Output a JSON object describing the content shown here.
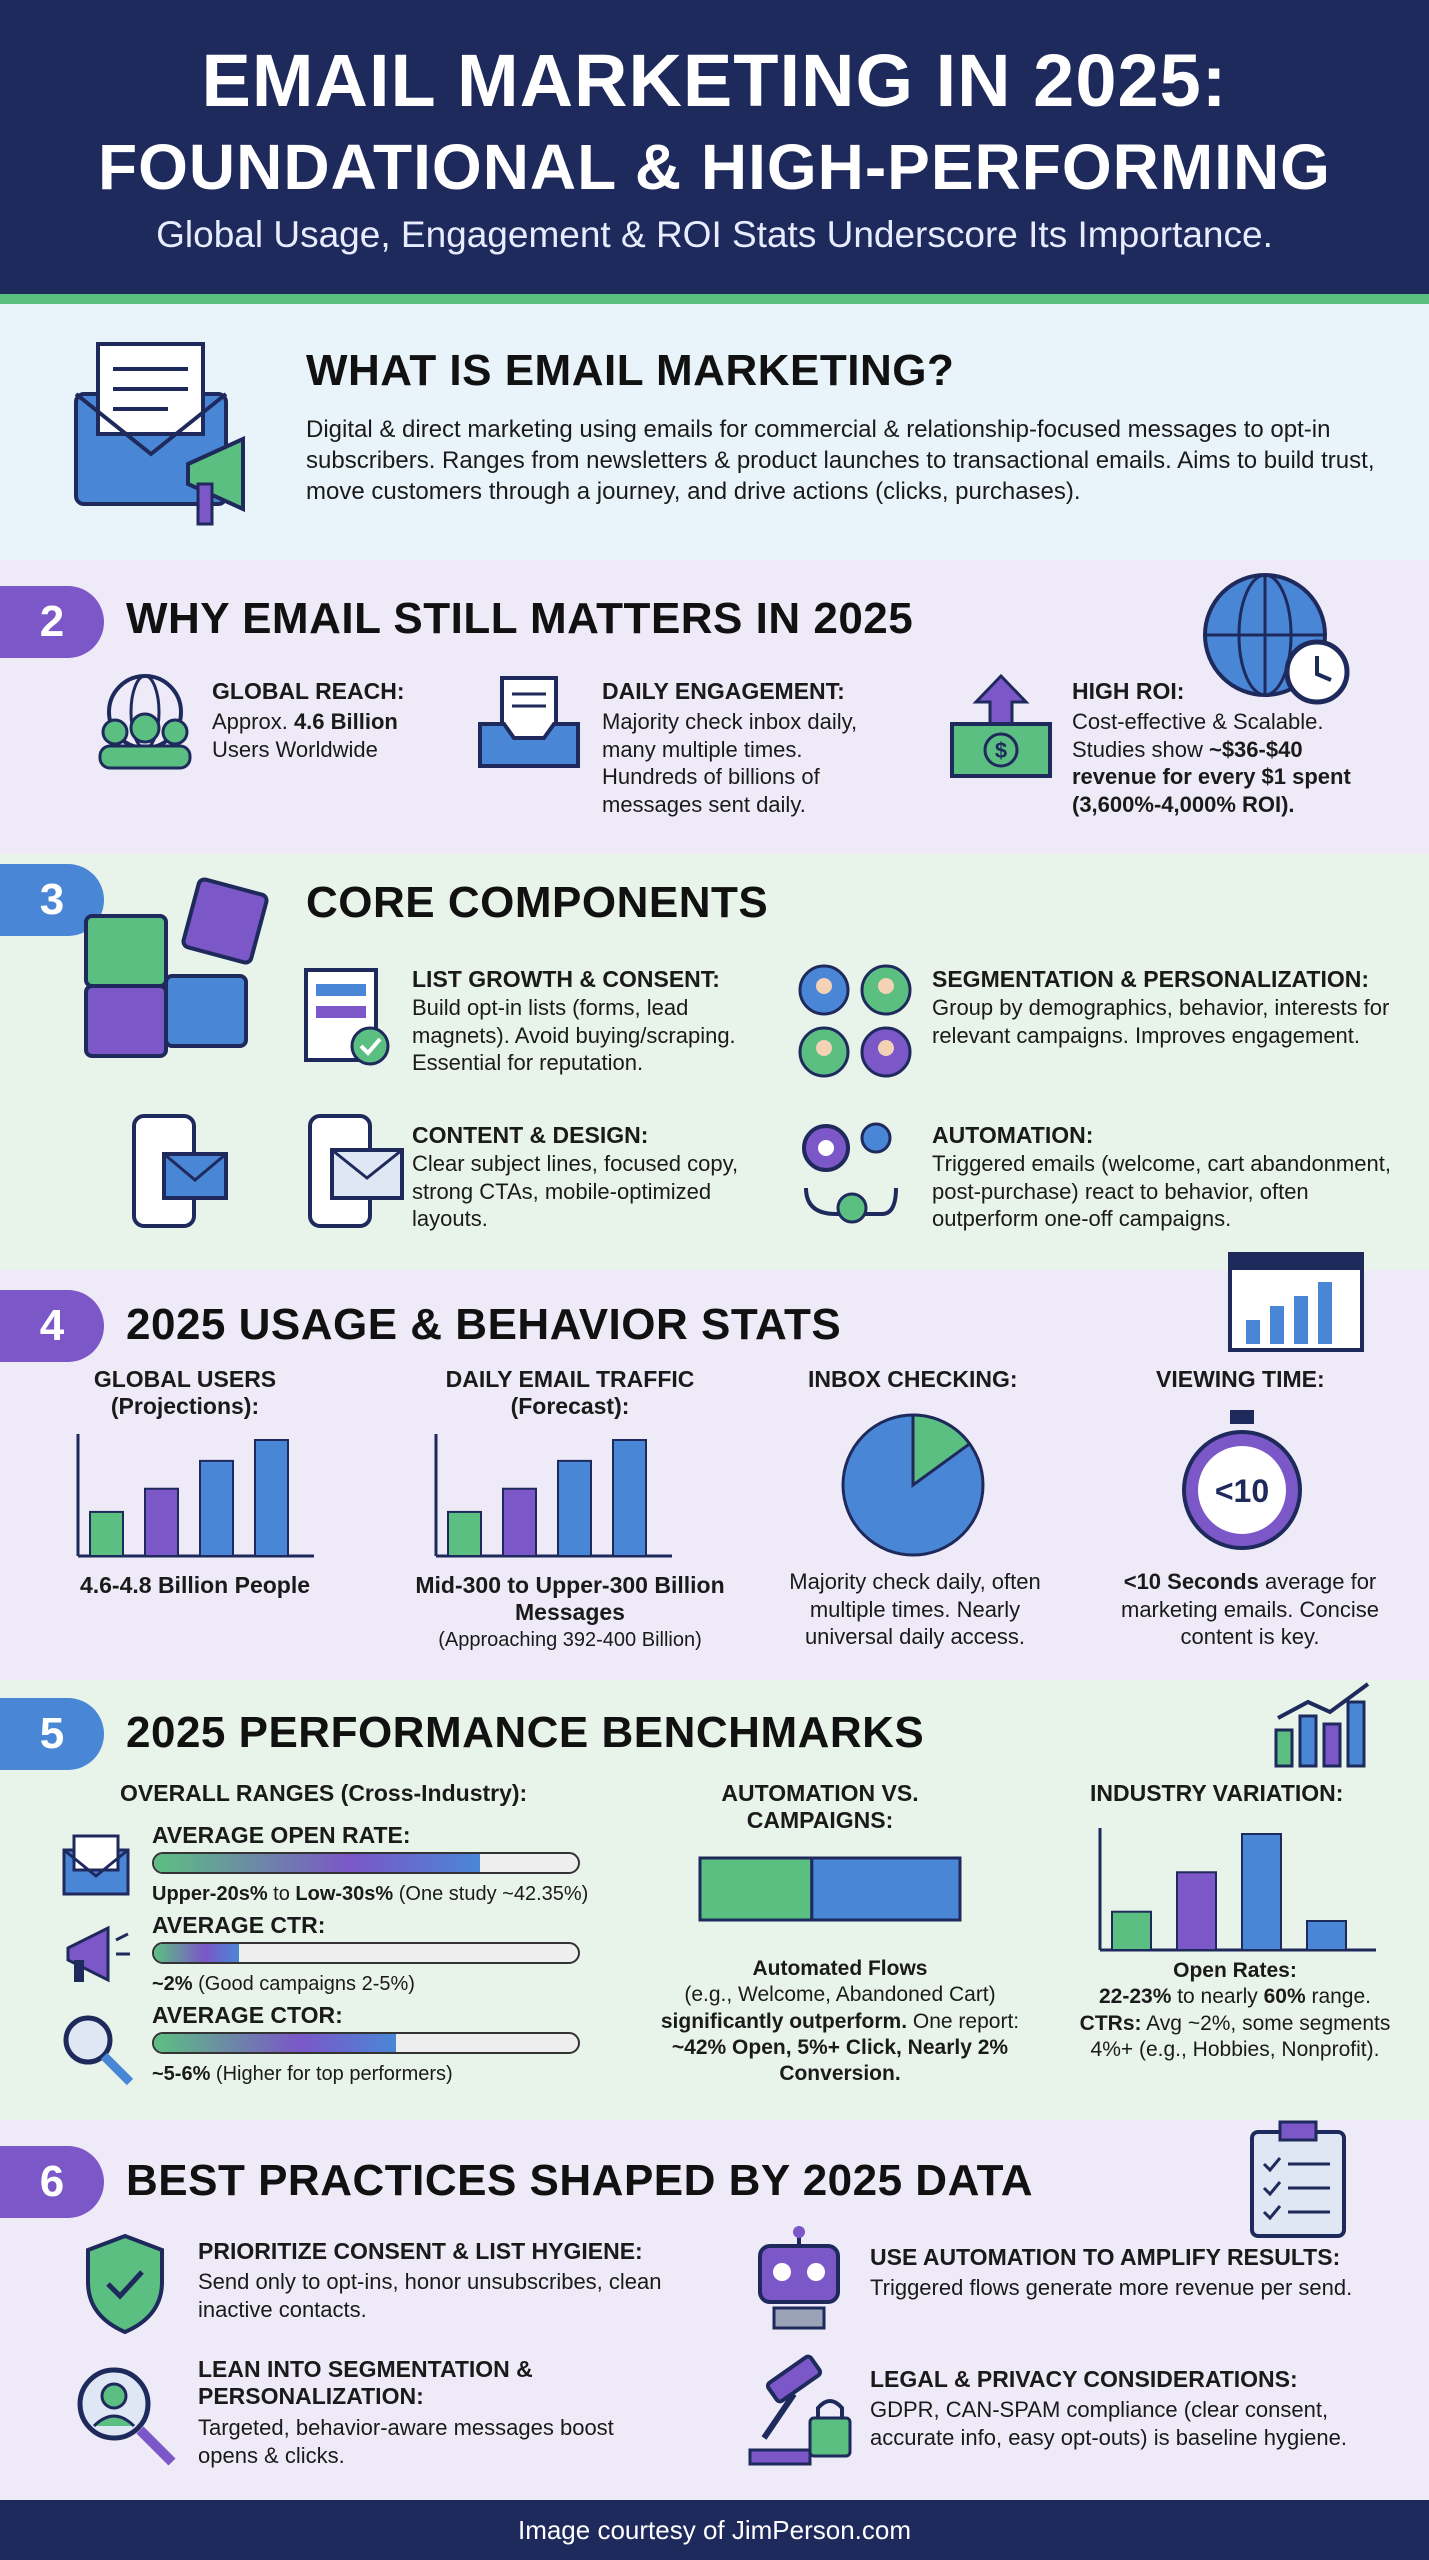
{
  "header": {
    "title_line1": "EMAIL MARKETING IN 2025:",
    "title_line2": "FOUNDATIONAL & HIGH-PERFORMING",
    "subtitle": "Global Usage, Engagement & ROI Stats Underscore Its Importance."
  },
  "colors": {
    "navy": "#1f2a5c",
    "green": "#5cbf82",
    "purple": "#7b57c7",
    "blue": "#4a86d6"
  },
  "s1": {
    "title": "WHAT IS EMAIL MARKETING?",
    "body": "Digital & direct marketing using emails for commercial & relationship-focused messages to opt-in subscribers. Ranges from newsletters & product launches to transactional emails. Aims to build trust, move customers through a journey, and drive actions (clicks, purchases)."
  },
  "s2": {
    "num": "2",
    "title": "WHY EMAIL STILL MATTERS IN 2025",
    "reach_title": "GLOBAL REACH:",
    "reach_pre": "Approx. ",
    "reach_bold": "4.6 Billion",
    "reach_post": "Users Worldwide",
    "eng_title": "DAILY ENGAGEMENT:",
    "eng_body": "Majority check inbox daily, many multiple times. Hundreds of billions of messages sent daily.",
    "roi_title": "HIGH ROI:",
    "roi_pre": "Cost-effective & Scalable. Studies show ",
    "roi_bold": "~$36-$40 revenue for every $1 spent (3,600%-4,000% ROI)."
  },
  "s3": {
    "num": "3",
    "title": "CORE COMPONENTS",
    "c1_title": "LIST GROWTH & CONSENT:",
    "c1_body": "Build opt-in lists (forms, lead magnets). Avoid buying/scraping. Essential for reputation.",
    "c2_title": "SEGMENTATION & PERSONALIZATION:",
    "c2_body": "Group by demographics, behavior, interests for relevant campaigns. Improves engagement.",
    "c3_title": "CONTENT & DESIGN:",
    "c3_body": "Clear subject lines, focused copy, strong CTAs, mobile-optimized layouts.",
    "c4_title": "AUTOMATION:",
    "c4_body": "Triggered emails (welcome, cart abandonment, post-purchase) react to behavior, often outperform one-off campaigns."
  },
  "s4": {
    "num": "4",
    "title": "2025 USAGE & BEHAVIOR STATS",
    "users_title": "GLOBAL USERS (Projections):",
    "users_caption": "4.6-4.8 Billion People",
    "users_bars": [
      0.38,
      0.58,
      0.82,
      1.0
    ],
    "traffic_title": "DAILY EMAIL TRAFFIC (Forecast):",
    "traffic_caption_bold": "Mid-300 to Upper-300 Billion Messages",
    "traffic_caption": "(Approaching 392-400 Billion)",
    "traffic_bars": [
      0.38,
      0.58,
      0.82,
      1.0
    ],
    "inbox_title": "INBOX CHECKING:",
    "inbox_caption": "Majority check daily, often multiple times. Nearly universal daily access.",
    "inbox_share": 0.85,
    "view_title": "VIEWING TIME:",
    "view_value": "<10",
    "view_bold": "<10 Seconds",
    "view_caption": " average for marketing emails. Concise content is key."
  },
  "s5": {
    "num": "5",
    "title": "2025 PERFORMANCE BENCHMARKS",
    "overall_title": "OVERALL RANGES (Cross-Industry):",
    "open_title": "AVERAGE OPEN RATE:",
    "open_bold1": "Upper-20s%",
    "open_mid": " to ",
    "open_bold2": "Low-30s%",
    "open_post": " (One study ~42.35%)",
    "open_fill": 0.77,
    "ctr_title": "AVERAGE CTR:",
    "ctr_bold": "~2%",
    "ctr_post": " (Good campaigns 2-5%)",
    "ctr_fill": 0.2,
    "ctor_title": "AVERAGE CTOR:",
    "ctor_bold": "~5-6%",
    "ctor_post": " (Higher for top performers)",
    "ctor_fill": 0.57,
    "auto_title": "AUTOMATION VS. CAMPAIGNS:",
    "auto_bold": "Automated Flows",
    "auto_line": "(e.g., Welcome, Abandoned Cart)",
    "auto_bold2": "significantly outperform.",
    "auto_mid": " One report: ",
    "auto_bold3": "~42% Open, 5%+ Click, Nearly 2% Conversion.",
    "auto_share": 0.43,
    "ind_title": "INDUSTRY VARIATION:",
    "ind_open_label": "Open Rates:",
    "ind_open_pre": "22-23%",
    "ind_open_mid": " to nearly ",
    "ind_open_bold": "60%",
    "ind_open_post": " range.",
    "ind_ctr_label": "CTRs:",
    "ind_ctr_post": " Avg ~2%, some segments 4%+ (e.g., Hobbies, Nonprofit).",
    "ind_bars": [
      0.33,
      0.67,
      1.0,
      0.25
    ]
  },
  "s6": {
    "num": "6",
    "title": "BEST PRACTICES SHAPED BY 2025 DATA",
    "p1_title": "PRIORITIZE CONSENT & LIST HYGIENE:",
    "p1_body": "Send only to opt-ins, honor unsubscribes, clean inactive contacts.",
    "p2_title": "USE AUTOMATION TO AMPLIFY RESULTS:",
    "p2_body": "Triggered flows generate more revenue per send.",
    "p3_title": "LEAN INTO SEGMENTATION & PERSONALIZATION:",
    "p3_body": "Targeted, behavior-aware messages boost opens & clicks.",
    "p4_title": "LEGAL & PRIVACY CONSIDERATIONS:",
    "p4_body": "GDPR, CAN-SPAM compliance (clear consent, accurate info, easy opt-outs) is baseline hygiene."
  },
  "footer": {
    "credit": "Image courtesy of JimPerson.com"
  }
}
